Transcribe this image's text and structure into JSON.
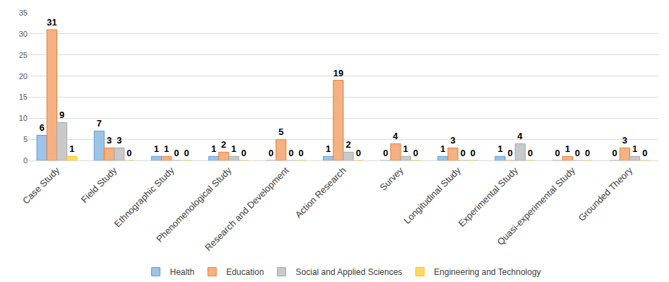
{
  "chart_data": {
    "type": "bar",
    "categories": [
      "Case Study",
      "Field Study",
      "Ethnographic Study",
      "Phenomenological Study",
      "Research and Development",
      "Action Research",
      "Survey",
      "Longitudinal Study",
      "Experimental Study",
      "Quasi-experimental Study",
      "Grounded Theory"
    ],
    "series": [
      {
        "name": "Health",
        "color": "#9dc3e6",
        "values": [
          6,
          7,
          1,
          1,
          0,
          1,
          0,
          1,
          1,
          0,
          0
        ]
      },
      {
        "name": "Education",
        "color": "#f4b183",
        "values": [
          31,
          3,
          1,
          2,
          5,
          19,
          4,
          3,
          0,
          1,
          3
        ]
      },
      {
        "name": "Social and Applied Sciences",
        "color": "#c9c9c9",
        "values": [
          9,
          3,
          0,
          1,
          0,
          2,
          1,
          0,
          4,
          0,
          1
        ]
      },
      {
        "name": "Engineering and Technology",
        "color": "#ffd966",
        "values": [
          1,
          0,
          0,
          0,
          0,
          0,
          0,
          0,
          0,
          0,
          0
        ]
      }
    ],
    "ylim": [
      0,
      35
    ],
    "yticks": [
      0,
      5,
      10,
      15,
      20,
      25,
      30,
      35
    ],
    "grid": true,
    "legend": "bottom",
    "data_labels": true
  }
}
